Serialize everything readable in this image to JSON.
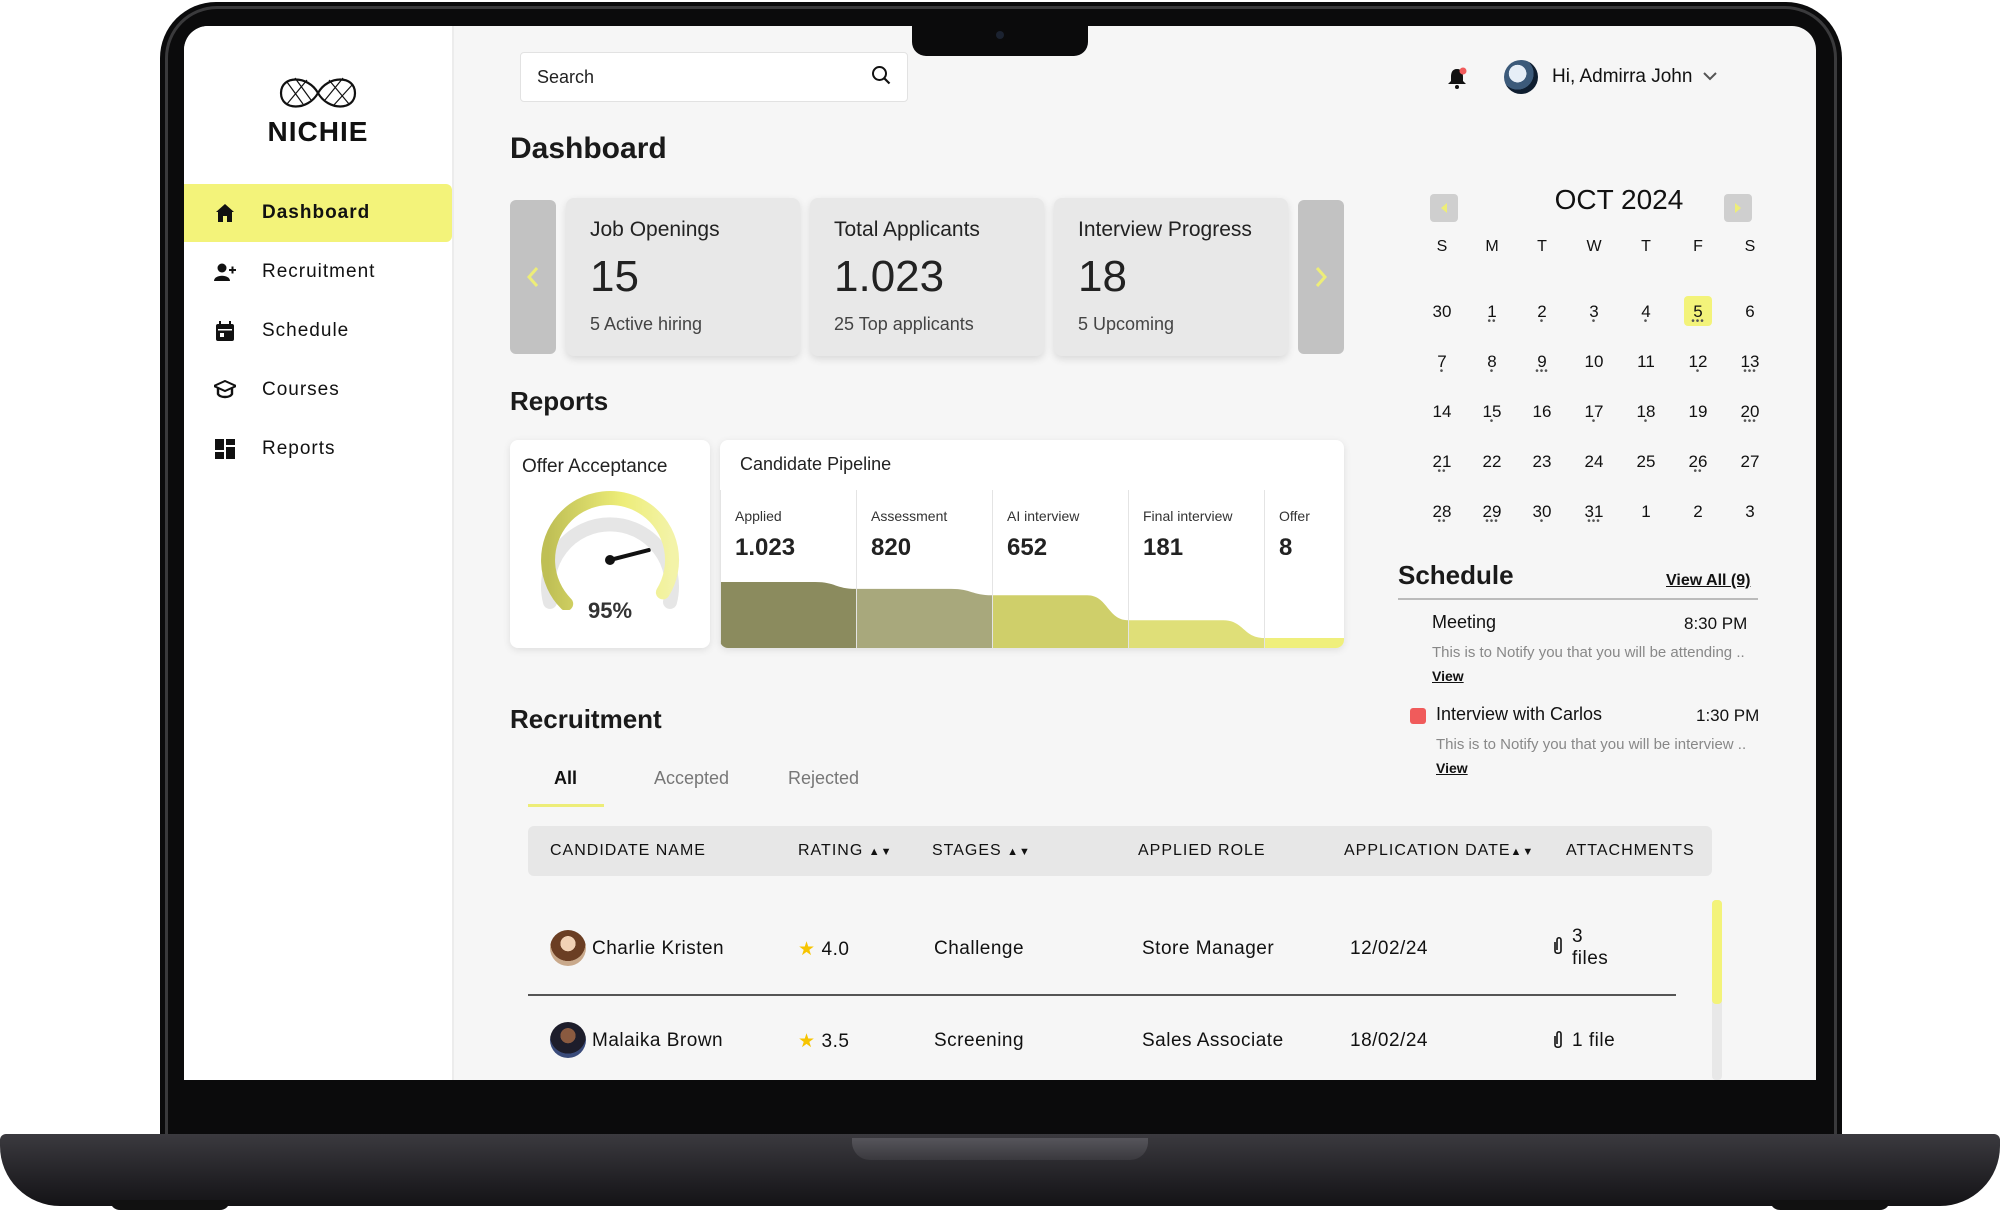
{
  "app": {
    "logo_text": "NICHIE"
  },
  "sidebar": {
    "items": [
      {
        "label": "Dashboard",
        "icon": "home-icon",
        "active": true
      },
      {
        "label": "Recruitment",
        "icon": "add-user-icon",
        "active": false
      },
      {
        "label": "Schedule",
        "icon": "calendar-icon",
        "active": false
      },
      {
        "label": "Courses",
        "icon": "graduation-cap-icon",
        "active": false
      },
      {
        "label": "Reports",
        "icon": "dashboard-grid-icon",
        "active": false
      }
    ]
  },
  "header": {
    "search_placeholder": "Search",
    "greeting": "Hi, Admirra John",
    "notification_badge_color": "#f05b5b"
  },
  "dashboard": {
    "title": "Dashboard",
    "stats": [
      {
        "label": "Job Openings",
        "value": "15",
        "sub": "5 Active hiring"
      },
      {
        "label": "Total Applicants",
        "value": "1.023",
        "sub": "25 Top applicants"
      },
      {
        "label": "Interview Progress",
        "value": "18",
        "sub": "5 Upcoming"
      }
    ]
  },
  "reports": {
    "title": "Reports",
    "offer_acceptance": {
      "title": "Offer Acceptance",
      "value_label": "95%",
      "value": 0.95
    },
    "pipeline": {
      "title": "Candidate Pipeline",
      "stages": [
        {
          "stage": "Applied",
          "value_label": "1.023",
          "value": 1023,
          "color": "#8b8b5e"
        },
        {
          "stage": "Assessment",
          "value_label": "820",
          "value": 820,
          "color": "#a8a87c"
        },
        {
          "stage": "AI interview",
          "value_label": "652",
          "value": 652,
          "color": "#cfcf6a"
        },
        {
          "stage": "Final interview",
          "value_label": "181",
          "value": 181,
          "color": "#dfdf78"
        },
        {
          "stage": "Offer",
          "value_label": "8",
          "value": 8,
          "color": "#efef7c"
        }
      ]
    }
  },
  "recruitment": {
    "title": "Recruitment",
    "tabs": [
      {
        "label": "All",
        "active": true
      },
      {
        "label": "Accepted",
        "active": false
      },
      {
        "label": "Rejected",
        "active": false
      }
    ],
    "columns": [
      "CANDIDATE NAME",
      "RATING",
      "STAGES",
      "APPLIED ROLE",
      "APPLICATION DATE",
      "ATTACHMENTS"
    ],
    "rows": [
      {
        "name": "Charlie Kristen",
        "rating": "4.0",
        "stage": "Challenge",
        "role": "Store Manager",
        "date": "12/02/24",
        "attachments_count": "3",
        "attachments_unit": "files"
      },
      {
        "name": "Malaika Brown",
        "rating": "3.5",
        "stage": "Screening",
        "role": "Sales Associate",
        "date": "18/02/24",
        "attachments_count": "1",
        "attachments_unit": "file"
      }
    ]
  },
  "calendar": {
    "title": "OCT 2024",
    "weekdays": [
      "S",
      "M",
      "T",
      "W",
      "T",
      "F",
      "S"
    ],
    "weeks": [
      [
        "30",
        "1",
        "2",
        "3",
        "4",
        "5",
        "6"
      ],
      [
        "7",
        "8",
        "9",
        "10",
        "11",
        "12",
        "13"
      ],
      [
        "14",
        "15",
        "16",
        "17",
        "18",
        "19",
        "20"
      ],
      [
        "21",
        "22",
        "23",
        "24",
        "25",
        "26",
        "27"
      ],
      [
        "28",
        "29",
        "30",
        "31",
        "1",
        "2",
        "3"
      ]
    ],
    "selected": "5",
    "event_dots": [
      [
        0,
        2,
        1,
        1,
        1,
        3,
        0
      ],
      [
        1,
        1,
        3,
        0,
        0,
        1,
        3
      ],
      [
        0,
        1,
        0,
        1,
        1,
        0,
        3
      ],
      [
        2,
        0,
        0,
        0,
        0,
        2,
        0
      ],
      [
        2,
        3,
        1,
        3,
        0,
        0,
        0
      ]
    ]
  },
  "schedule": {
    "title": "Schedule",
    "view_all": "View All (9)",
    "events": [
      {
        "title": "Meeting",
        "time": "8:30 PM",
        "desc": "This is to Notify you that you will be attending ..",
        "view": "View",
        "flag_color": ""
      },
      {
        "title": "Interview with Carlos",
        "time": "1:30 PM",
        "desc": "This is to Notify you that you will be interview ..",
        "view": "View",
        "flag_color": "#f05b5b"
      }
    ]
  }
}
